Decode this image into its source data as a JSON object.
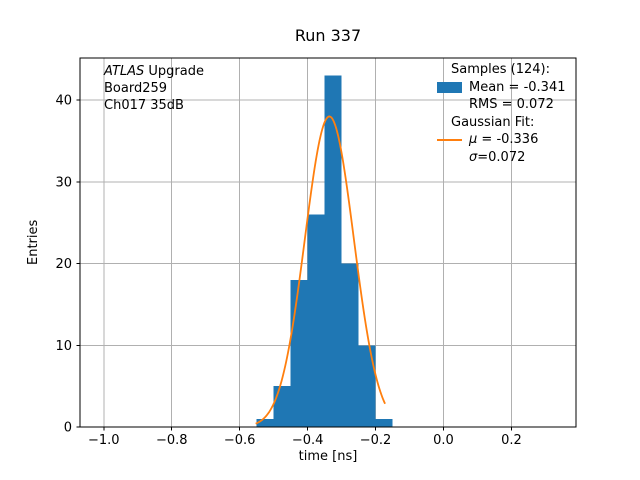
{
  "chart_data": {
    "type": "histogram",
    "title": "Run 337",
    "xlabel": "time [ns]",
    "ylabel": "Entries",
    "bin_edges": [
      -0.55,
      -0.5,
      -0.45,
      -0.4,
      -0.35,
      -0.3,
      -0.25,
      -0.2,
      -0.15
    ],
    "counts": [
      1,
      5,
      18,
      26,
      43,
      20,
      10,
      1
    ],
    "n_samples": 124,
    "stats": {
      "mean": -0.341,
      "rms": 0.072
    },
    "gaussian_fit": {
      "mu": -0.336,
      "sigma": 0.072,
      "peak": 38,
      "x_start": -0.553,
      "x_end": -0.172
    },
    "xlim": [
      -1.07,
      0.39
    ],
    "ylim": [
      0,
      45.15
    ],
    "xticks": [
      -1.0,
      -0.8,
      -0.6,
      -0.4,
      -0.2,
      0.0,
      0.2
    ],
    "xtick_labels": [
      "−1.0",
      "−0.8",
      "−0.6",
      "−0.4",
      "−0.2",
      "0.0",
      "0.2"
    ],
    "yticks": [
      0,
      10,
      20,
      30,
      40
    ],
    "ytick_labels": [
      "0",
      "10",
      "20",
      "30",
      "40"
    ],
    "grid": true,
    "legend_position": "upper right"
  },
  "annotation": {
    "line1_italic": "ATLAS",
    "line1_rest": " Upgrade",
    "line2": "Board259",
    "line3": "Ch017 35dB"
  },
  "legend": {
    "entries": [
      {
        "handle": "none",
        "indent": "header",
        "label": "Samples (124):"
      },
      {
        "handle": "patch",
        "indent": "handle",
        "label": "Mean = -0.341"
      },
      {
        "handle": "none",
        "indent": "value",
        "label": "RMS = 0.072"
      },
      {
        "handle": "none",
        "indent": "header",
        "label": "Gaussian Fit:"
      },
      {
        "handle": "line",
        "indent": "handle",
        "sym": "μ",
        "label": " = -0.336"
      },
      {
        "handle": "none",
        "indent": "value",
        "sym": "σ",
        "label": "=0.072"
      }
    ]
  },
  "colors": {
    "bar": "#1f77b4",
    "curve": "#ff7f0e",
    "grid": "#b0b0b0",
    "frame": "#000000",
    "text": "#000000",
    "background": "#ffffff"
  }
}
